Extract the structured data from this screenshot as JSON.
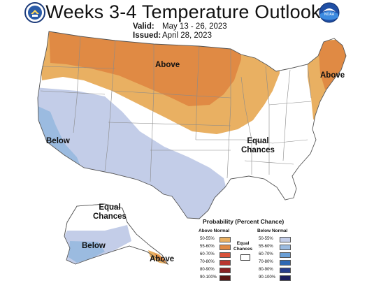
{
  "header": {
    "title": "Weeks 3-4 Temperature Outlook",
    "valid_label": "Valid:",
    "valid_value": "May 13 - 26, 2023",
    "issued_label": "Issued:",
    "issued_value": "April 28, 2023"
  },
  "logos": {
    "left": "commerce-seal",
    "right": "noaa-logo",
    "right_text": "NOAA"
  },
  "map_labels": {
    "above_north": "Above",
    "above_northeast": "Above",
    "below_west": "Below",
    "equal_chances_east_1": "Equal",
    "equal_chances_east_2": "Chances",
    "equal_chances_alaska_1": "Equal",
    "equal_chances_alaska_2": "Chances",
    "below_alaska": "Below",
    "above_alaska": "Above"
  },
  "legend": {
    "title": "Probability (Percent Chance)",
    "above_header": "Above Normal",
    "below_header": "Below Normal",
    "equal_chances_1": "Equal",
    "equal_chances_2": "Chances",
    "above_rows": [
      {
        "label": "50-55%",
        "color": "#e9b062"
      },
      {
        "label": "55-60%",
        "color": "#e08a44"
      },
      {
        "label": "60-70%",
        "color": "#d8533b"
      },
      {
        "label": "70-80%",
        "color": "#b93530"
      },
      {
        "label": "80-90%",
        "color": "#8a2224"
      },
      {
        "label": "90-100%",
        "color": "#5c1614"
      }
    ],
    "below_rows": [
      {
        "label": "50-55%",
        "color": "#c3cde8"
      },
      {
        "label": "55-60%",
        "color": "#9bbbe0"
      },
      {
        "label": "60-70%",
        "color": "#6ca0d6"
      },
      {
        "label": "70-80%",
        "color": "#2e67b3"
      },
      {
        "label": "80-90%",
        "color": "#273d8c"
      },
      {
        "label": "90-100%",
        "color": "#1c1e5e"
      }
    ]
  },
  "colors": {
    "above_light": "#e9b062",
    "above_dark": "#e08a44",
    "below_light": "#c3cde8",
    "below_dark": "#9bbbe0",
    "boundary": "#8a8a8a"
  }
}
